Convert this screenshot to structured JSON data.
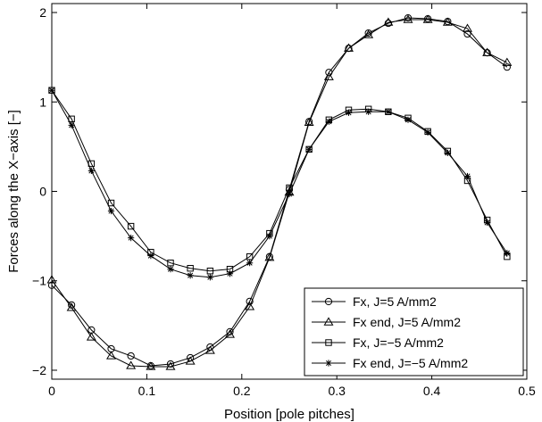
{
  "chart_data": {
    "type": "line",
    "xlabel": "Position [pole pitches]",
    "ylabel": "Forces along the X−axis [−]",
    "xlim": [
      0,
      0.5
    ],
    "ylim": [
      -2.1,
      2.1
    ],
    "xticks": [
      0,
      0.1,
      0.2,
      0.3,
      0.4,
      0.5
    ],
    "xtick_labels": [
      "0",
      "0.1",
      "0.2",
      "0.3",
      "0.4",
      "0.5"
    ],
    "yticks": [
      -2,
      -1,
      0,
      1,
      2
    ],
    "ytick_labels": [
      "−2",
      "−1",
      "0",
      "1",
      "2"
    ],
    "grid": false,
    "legend_position": "bottom-right",
    "x": [
      0,
      0.0208,
      0.0417,
      0.0625,
      0.0833,
      0.1042,
      0.125,
      0.1458,
      0.1667,
      0.1875,
      0.2083,
      0.2292,
      0.25,
      0.2708,
      0.2917,
      0.3125,
      0.3333,
      0.3542,
      0.375,
      0.3958,
      0.4167,
      0.4375,
      0.4583,
      0.4792
    ],
    "series": [
      {
        "name": "Fx, J=5 A/mm2",
        "marker": "circle",
        "values": [
          -1.05,
          -1.27,
          -1.55,
          -1.76,
          -1.84,
          -1.95,
          -1.93,
          -1.86,
          -1.74,
          -1.57,
          -1.23,
          -0.73,
          0.02,
          0.78,
          1.33,
          1.6,
          1.77,
          1.88,
          1.94,
          1.93,
          1.9,
          1.76,
          1.55,
          1.39
        ]
      },
      {
        "name": "Fx end, J=5 A/mm2",
        "marker": "triangle",
        "values": [
          -0.99,
          -1.3,
          -1.63,
          -1.84,
          -1.95,
          -1.96,
          -1.96,
          -1.9,
          -1.78,
          -1.6,
          -1.29,
          -0.74,
          -0.01,
          0.77,
          1.28,
          1.6,
          1.75,
          1.89,
          1.92,
          1.92,
          1.89,
          1.82,
          1.55,
          1.44
        ]
      },
      {
        "name": "Fx, J=−5 A/mm2",
        "marker": "square",
        "values": [
          1.13,
          0.81,
          0.31,
          -0.13,
          -0.39,
          -0.68,
          -0.8,
          -0.86,
          -0.89,
          -0.87,
          -0.73,
          -0.47,
          0.04,
          0.47,
          0.8,
          0.91,
          0.92,
          0.89,
          0.82,
          0.67,
          0.45,
          0.12,
          -0.32,
          -0.73
        ]
      },
      {
        "name": "Fx end, J=−5 A/mm2",
        "marker": "star",
        "values": [
          1.13,
          0.74,
          0.23,
          -0.22,
          -0.52,
          -0.72,
          -0.87,
          -0.94,
          -0.96,
          -0.92,
          -0.8,
          -0.5,
          -0.03,
          0.47,
          0.78,
          0.88,
          0.89,
          0.89,
          0.8,
          0.66,
          0.43,
          0.17,
          -0.35,
          -0.69
        ]
      }
    ]
  }
}
